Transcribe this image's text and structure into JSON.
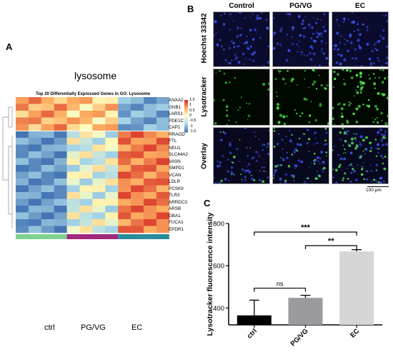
{
  "panel_a": {
    "letter": "A",
    "title": "lysosome",
    "heatmap_title": "Top 20 Differentially Expressed Genes in GO: Lysosome",
    "genes": [
      "ANXA2",
      "GNB1",
      "LARS1",
      "PDE1C",
      "CAP1",
      "RRAGD",
      "FTL",
      "NEU1",
      "SLC44A2",
      "VASN",
      "SMPD1",
      "VCAN",
      "LDLR",
      "PCSK9",
      "TLR3",
      "ARRDC3",
      "ARSB",
      "GBA1",
      "FUCA1",
      "EPDR1"
    ],
    "legend_ticks": [
      "1.5",
      "1",
      "0.5",
      "0",
      "-0.5",
      "-1",
      "-1.5"
    ],
    "groups": [
      "ctrl",
      "PG/VG",
      "EC"
    ],
    "group_colors": [
      "#7fd18f",
      "#a0287f",
      "#2a8c9a"
    ]
  },
  "panel_b": {
    "letter": "B",
    "columns": [
      "Control",
      "PG/VG",
      "EC"
    ],
    "rows": [
      "Hoechst 33342",
      "Lysotracker",
      "Overlay"
    ],
    "scale_bar": "100 μm"
  },
  "panel_c": {
    "letter": "C"
  },
  "chart_data": {
    "type": "bar",
    "categories": [
      "ctrl",
      "PG/VG",
      "EC"
    ],
    "values": [
      365,
      448,
      668
    ],
    "errors": [
      72,
      12,
      8
    ],
    "colors": [
      "#000000",
      "#9b9b9f",
      "#d6d6d6"
    ],
    "ylabel": "Lysotracker fluorescence intensity",
    "ylim": [
      320,
      800
    ],
    "yticks": [
      400,
      600,
      800
    ],
    "significance": [
      {
        "from": 0,
        "to": 1,
        "label": "ns"
      },
      {
        "from": 0,
        "to": 2,
        "label": "***"
      },
      {
        "from": 1,
        "to": 2,
        "label": "**"
      }
    ]
  }
}
